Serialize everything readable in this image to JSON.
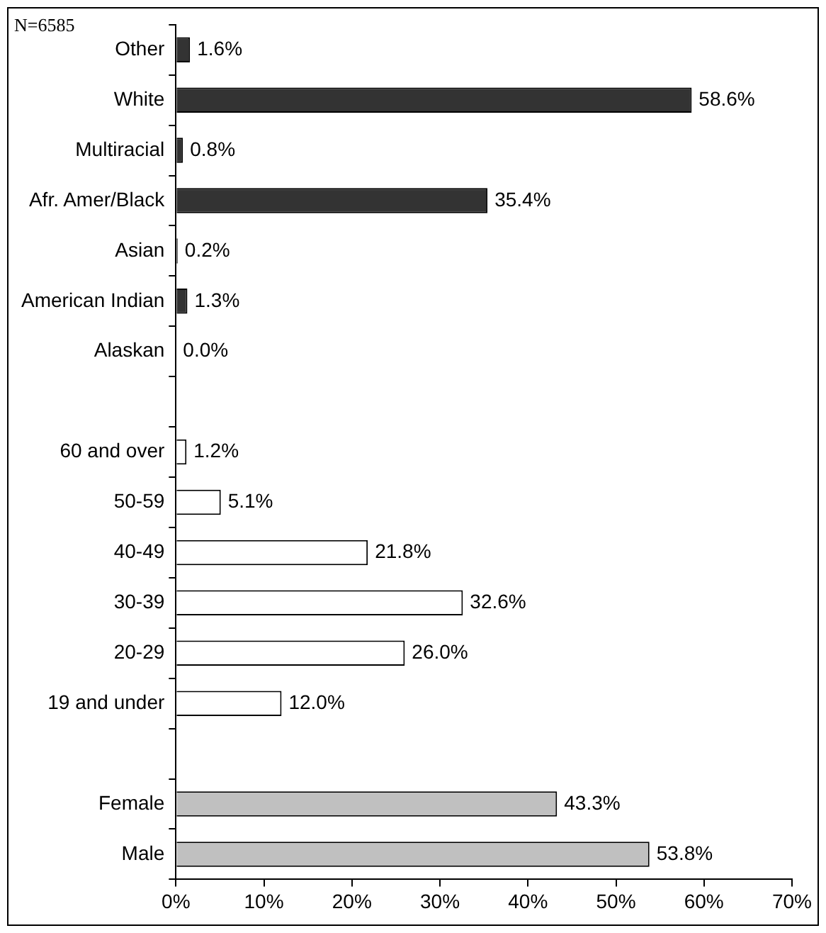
{
  "chart_data": {
    "type": "bar",
    "orientation": "horizontal",
    "categories": [
      "Other",
      "White",
      "Multiracial",
      "Afr. Amer/Black",
      "Asian",
      "American Indian",
      "Alaskan",
      null,
      "60 and over",
      "50-59",
      "40-49",
      "30-39",
      "20-29",
      "19 and under",
      null,
      "Female",
      "Male"
    ],
    "values": [
      1.6,
      58.6,
      0.8,
      35.4,
      0.2,
      1.3,
      0.0,
      null,
      1.2,
      5.1,
      21.8,
      32.6,
      26.0,
      12.0,
      null,
      43.3,
      53.8
    ],
    "colors": [
      "#333333",
      "#333333",
      "#333333",
      "#333333",
      "#333333",
      "#333333",
      "#333333",
      null,
      "#ffffff",
      "#ffffff",
      "#ffffff",
      "#ffffff",
      "#ffffff",
      "#ffffff",
      null,
      "#c0c0c0",
      "#c0c0c0"
    ],
    "value_labels": [
      "1.6%",
      "58.6%",
      "0.8%",
      "35.4%",
      "0.2%",
      "1.3%",
      "0.0%",
      null,
      "1.2%",
      "5.1%",
      "21.8%",
      "32.6%",
      "26.0%",
      "12.0%",
      null,
      "43.3%",
      "53.8%"
    ],
    "xlim": [
      0,
      70
    ],
    "xticks": [
      {
        "value": 0,
        "label": "0%"
      },
      {
        "value": 10,
        "label": "10%"
      },
      {
        "value": 20,
        "label": "20%"
      },
      {
        "value": 30,
        "label": "30%"
      },
      {
        "value": 40,
        "label": "40%"
      },
      {
        "value": 50,
        "label": "50%"
      },
      {
        "value": 60,
        "label": "60%"
      },
      {
        "value": 70,
        "label": "70%"
      }
    ],
    "annotations": [
      "N=6585"
    ],
    "grid": false,
    "legend": false
  }
}
